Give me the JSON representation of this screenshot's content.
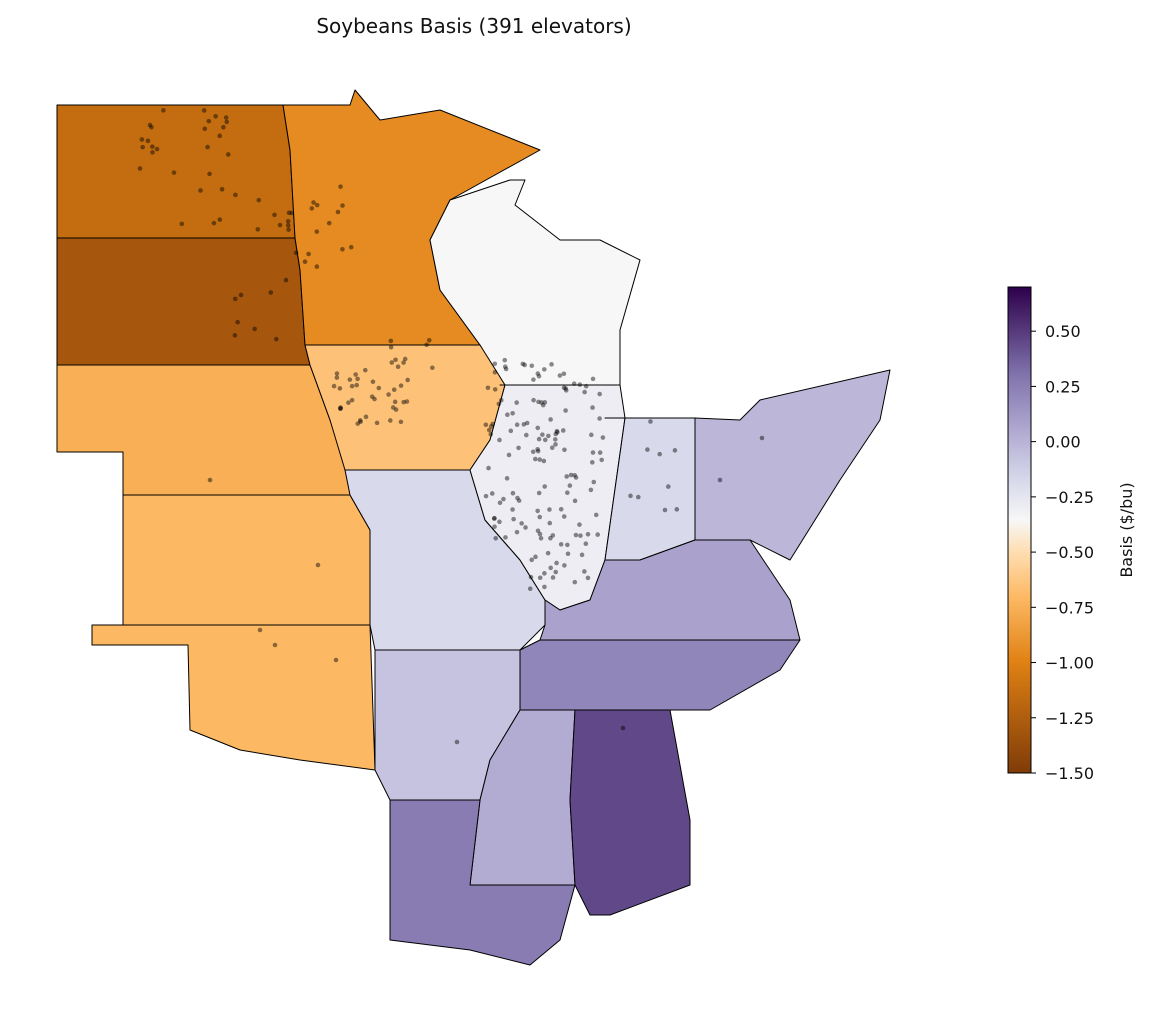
{
  "title": "Soybeans Basis (391 elevators)",
  "colorbar": {
    "label": "Basis ($/bu)",
    "range": [
      -1.5,
      0.7
    ],
    "ticks": [
      "0.50",
      "0.25",
      "0.00",
      "−0.25",
      "−0.50",
      "−0.75",
      "−1.00",
      "−1.25",
      "−1.50"
    ],
    "tick_values": [
      0.5,
      0.25,
      0,
      -0.25,
      -0.5,
      -0.75,
      -1,
      -1.25,
      -1.5
    ],
    "colormap": "PuOr",
    "colors": [
      "#7f3b08",
      "#e08214",
      "#fdb863",
      "#fee0b6",
      "#f7f7f7",
      "#d8daeb",
      "#b2abd2",
      "#8073ac",
      "#2d004b"
    ]
  },
  "regions": [
    {
      "name": "North Dakota",
      "basis": -1.15
    },
    {
      "name": "South Dakota",
      "basis": -1.3
    },
    {
      "name": "Nebraska",
      "basis": -0.75
    },
    {
      "name": "Kansas",
      "basis": -0.7
    },
    {
      "name": "Oklahoma",
      "basis": -0.7
    },
    {
      "name": "Minnesota",
      "basis": -0.95
    },
    {
      "name": "Wisconsin",
      "basis": -0.35
    },
    {
      "name": "Iowa",
      "basis": -0.65
    },
    {
      "name": "Missouri",
      "basis": -0.2
    },
    {
      "name": "Illinois",
      "basis": -0.3
    },
    {
      "name": "Indiana",
      "basis": -0.2
    },
    {
      "name": "Ohio",
      "basis": -0.05
    },
    {
      "name": "Kentucky",
      "basis": 0.05
    },
    {
      "name": "Tennessee",
      "basis": 0.2
    },
    {
      "name": "Arkansas",
      "basis": -0.1
    },
    {
      "name": "Mississippi",
      "basis": 0.0
    },
    {
      "name": "Alabama",
      "basis": 0.45
    },
    {
      "name": "Louisiana",
      "basis": 0.25
    }
  ]
}
